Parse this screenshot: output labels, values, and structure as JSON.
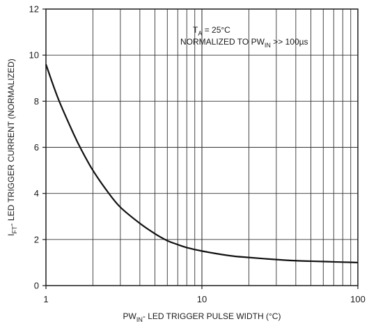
{
  "chart_data": {
    "type": "line",
    "x_scale": "log",
    "y_scale": "linear",
    "grid": true,
    "xlim": [
      1,
      100
    ],
    "ylim": [
      0,
      12
    ],
    "x_ticks": [
      1,
      10,
      100
    ],
    "y_ticks": [
      0,
      2,
      4,
      6,
      8,
      10,
      12
    ],
    "x_tick_labels": [
      "1",
      "10",
      "100"
    ],
    "y_tick_labels": [
      "0",
      "2",
      "4",
      "6",
      "8",
      "10",
      "12"
    ],
    "xlabel": {
      "prefix": "PW",
      "sub": "IN",
      "suffix": "- LED TRIGGER PULSE WIDTH (°C)"
    },
    "ylabel": {
      "prefix": "I",
      "sub": "FT",
      "suffix": "- LED TRIGGER CURRENT (NORMALIZED)"
    },
    "annotations": {
      "line1": {
        "prefix": "T",
        "sub": "A",
        "suffix": " = 25°C"
      },
      "line2": {
        "prefix": "NORMALIZED TO PW",
        "sub": "IN",
        "suffix": " >> 100µs"
      }
    },
    "series": [
      {
        "x": [
          1,
          1.2,
          1.5,
          1.7,
          2,
          2.5,
          3,
          4,
          5,
          6,
          7,
          8,
          10,
          15,
          20,
          30,
          40,
          50,
          70,
          100
        ],
        "y": [
          9.6,
          8.1,
          6.6,
          5.85,
          5.0,
          4.05,
          3.4,
          2.7,
          2.25,
          1.95,
          1.78,
          1.65,
          1.5,
          1.3,
          1.22,
          1.13,
          1.08,
          1.06,
          1.03,
          1.0
        ]
      }
    ]
  }
}
